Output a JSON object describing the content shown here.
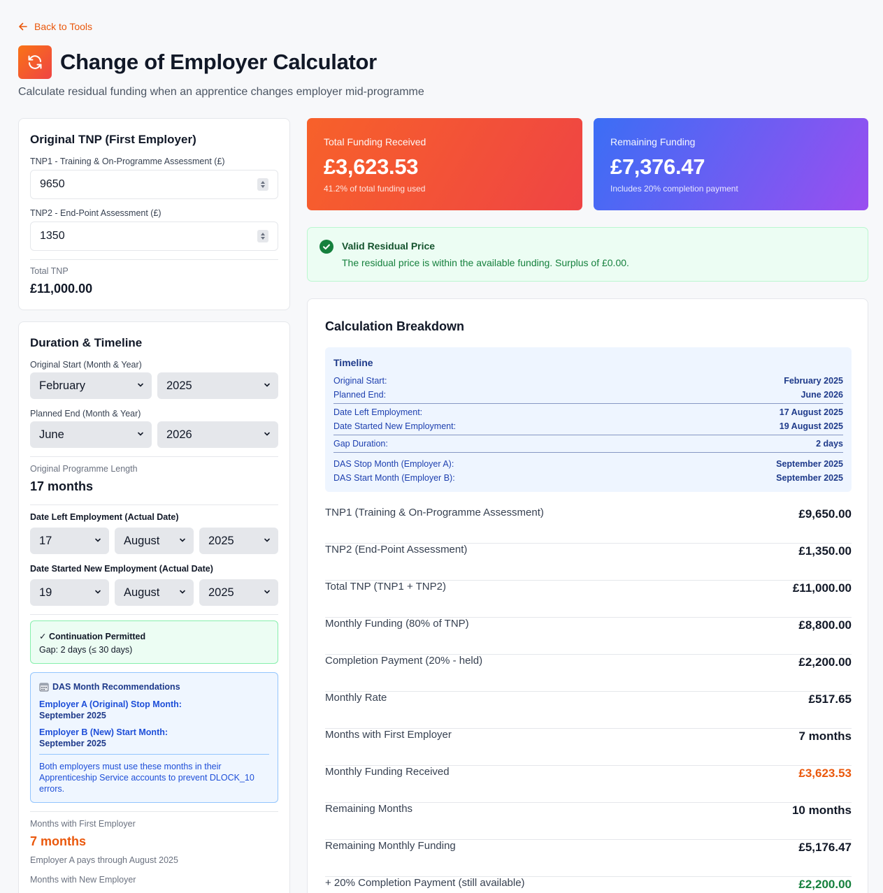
{
  "nav": {
    "back_label": "Back to Tools"
  },
  "header": {
    "title": "Change of Employer Calculator",
    "subtitle": "Calculate residual funding when an apprentice changes employer mid-programme"
  },
  "tnp_card": {
    "title": "Original TNP (First Employer)",
    "tnp1_label": "TNP1 - Training & On-Programme Assessment (£)",
    "tnp1_value": "9650",
    "tnp2_label": "TNP2 - End-Point Assessment (£)",
    "tnp2_value": "1350",
    "total_label": "Total TNP",
    "total_value": "£11,000.00"
  },
  "duration_card": {
    "title": "Duration & Timeline",
    "start_label": "Original Start (Month & Year)",
    "start_month": "February",
    "start_year": "2025",
    "end_label": "Planned End (Month & Year)",
    "end_month": "June",
    "end_year": "2026",
    "length_label": "Original Programme Length",
    "length_value": "17 months",
    "left_label": "Date Left Employment (Actual Date)",
    "left_day": "17",
    "left_month": "August",
    "left_year": "2025",
    "started_label": "Date Started New Employment (Actual Date)",
    "started_day": "19",
    "started_month": "August",
    "started_year": "2025",
    "continuation_title": "✓ Continuation Permitted",
    "continuation_gap": "Gap: 2 days (≤ 30 days)",
    "das_title": "DAS Month Recommendations",
    "das_a_label": "Employer A (Original) Stop Month:",
    "das_a_value": "September 2025",
    "das_b_label": "Employer B (New) Start Month:",
    "das_b_value": "September 2025",
    "das_note": "Both employers must use these months in their Apprenticeship Service accounts to prevent DLOCK_10 errors.",
    "months_first_label": "Months with First Employer",
    "months_first_value": "7 months",
    "months_first_note": "Employer A pays through August 2025",
    "months_new_label": "Months with New Employer"
  },
  "stats": {
    "received_label": "Total Funding Received",
    "received_value": "£3,623.53",
    "received_sub": "41.2% of total funding used",
    "remaining_label": "Remaining Funding",
    "remaining_value": "£7,376.47",
    "remaining_sub": "Includes 20% completion payment"
  },
  "valid": {
    "title": "Valid Residual Price",
    "message": "The residual price is within the available funding. Surplus of £0.00."
  },
  "breakdown": {
    "title": "Calculation Breakdown",
    "timeline_title": "Timeline",
    "timeline": [
      {
        "k": "Original Start:",
        "v": "February 2025"
      },
      {
        "k": "Planned End:",
        "v": "June 2026"
      },
      {
        "k": "Date Left Employment:",
        "v": "17 August 2025"
      },
      {
        "k": "Date Started New Employment:",
        "v": "19 August 2025"
      },
      {
        "k": "Gap Duration:",
        "v": "2 days"
      },
      {
        "k": "DAS Stop Month (Employer A):",
        "v": "September 2025"
      },
      {
        "k": "DAS Start Month (Employer B):",
        "v": "September 2025"
      }
    ],
    "rows": [
      {
        "k": "TNP1 (Training & On-Programme Assessment)",
        "v": "£9,650.00"
      },
      {
        "k": "TNP2 (End-Point Assessment)",
        "v": "£1,350.00"
      },
      {
        "k": "Total TNP (TNP1 + TNP2)",
        "v": "£11,000.00"
      },
      {
        "k": "Monthly Funding (80% of TNP)",
        "v": "£8,800.00"
      },
      {
        "k": "Completion Payment (20% - held)",
        "v": "£2,200.00"
      },
      {
        "k": "Monthly Rate",
        "v": "£517.65"
      },
      {
        "k": "Months with First Employer",
        "v": "7 months"
      },
      {
        "k": "Monthly Funding Received",
        "v": "£3,623.53"
      },
      {
        "k": "Remaining Months",
        "v": "10 months"
      },
      {
        "k": "Remaining Monthly Funding",
        "v": "£5,176.47"
      },
      {
        "k": "+ 20% Completion Payment (still available)",
        "v": "£2,200.00"
      }
    ]
  },
  "colors": {
    "accent": "#ea580c",
    "received_gradient": [
      "#f97316",
      "#ef4444"
    ],
    "remaining_gradient": [
      "#3b6ef5",
      "#9a4ef0"
    ],
    "success": "#15803d",
    "info": "#1e40af"
  }
}
